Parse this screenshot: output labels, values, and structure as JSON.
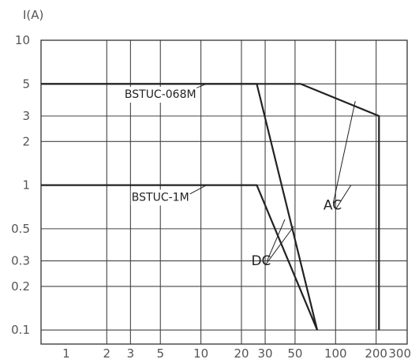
{
  "chart_data": {
    "type": "line",
    "ylabel": "I(A)",
    "x_scale": "log",
    "y_scale": "log",
    "xlim": [
      0.65,
      340
    ],
    "ylim": [
      0.08,
      10
    ],
    "x_tick_labels": [
      {
        "value": 1,
        "label": "1"
      },
      {
        "value": 2,
        "label": "2"
      },
      {
        "value": 3,
        "label": "3"
      },
      {
        "value": 5,
        "label": "5"
      },
      {
        "value": 10,
        "label": "10"
      },
      {
        "value": 20,
        "label": "20"
      },
      {
        "value": 30,
        "label": "30"
      },
      {
        "value": 50,
        "label": "50"
      },
      {
        "value": 100,
        "label": "100"
      },
      {
        "value": 200,
        "label": "200"
      },
      {
        "value": 300,
        "label": "300"
      }
    ],
    "y_tick_labels": [
      {
        "value": 10,
        "label": "10"
      },
      {
        "value": 5,
        "label": "5"
      },
      {
        "value": 3,
        "label": "3"
      },
      {
        "value": 2,
        "label": "2"
      },
      {
        "value": 1,
        "label": "1"
      },
      {
        "value": 0.5,
        "label": "0.5"
      },
      {
        "value": 0.3,
        "label": "0.3"
      },
      {
        "value": 0.2,
        "label": "0.2"
      },
      {
        "value": 0.1,
        "label": "0.1"
      }
    ],
    "x_gridlines": [
      2,
      3,
      5,
      10,
      20,
      30,
      50,
      100,
      200
    ],
    "y_gridlines": [
      5,
      3,
      2,
      1,
      0.5,
      0.3,
      0.2,
      0.1
    ],
    "grid": true,
    "series": [
      {
        "name": "BSTUC-068M",
        "points": [
          [
            0.65,
            5
          ],
          [
            26,
            5
          ],
          [
            73,
            0.1
          ]
        ]
      },
      {
        "name": "BSTUC-068M",
        "points": [
          [
            0.65,
            5
          ],
          [
            55,
            5
          ],
          [
            210,
            3
          ],
          [
            210,
            0.1
          ]
        ]
      },
      {
        "name": "BSTUC-1M",
        "points": [
          [
            0.65,
            1
          ],
          [
            26,
            1
          ],
          [
            73,
            0.1
          ]
        ]
      }
    ],
    "annotations": [
      {
        "text": "BSTUC-068M",
        "at": [
          5,
          4.0
        ],
        "leader_from": [
          6.5,
          4.1
        ],
        "leader_to": [
          11,
          5
        ]
      },
      {
        "text": "BSTUC-1M",
        "at": [
          5,
          0.78
        ],
        "leader_from": [
          7,
          0.8
        ],
        "leader_to": [
          11,
          1
        ]
      },
      {
        "text": "AC",
        "at": [
          95,
          0.68
        ],
        "leaders": [
          [
            [
              96,
              0.75
            ],
            [
              140,
              3.8
            ]
          ],
          [
            [
              100,
              0.68
            ],
            [
              130,
              1
            ]
          ]
        ]
      },
      {
        "text": "DC",
        "at": [
          28,
          0.28
        ],
        "leaders": [
          [
            [
              31,
              0.3
            ],
            [
              42,
              0.58
            ]
          ],
          [
            [
              30,
              0.28
            ],
            [
              49,
              0.52
            ]
          ]
        ]
      }
    ]
  }
}
